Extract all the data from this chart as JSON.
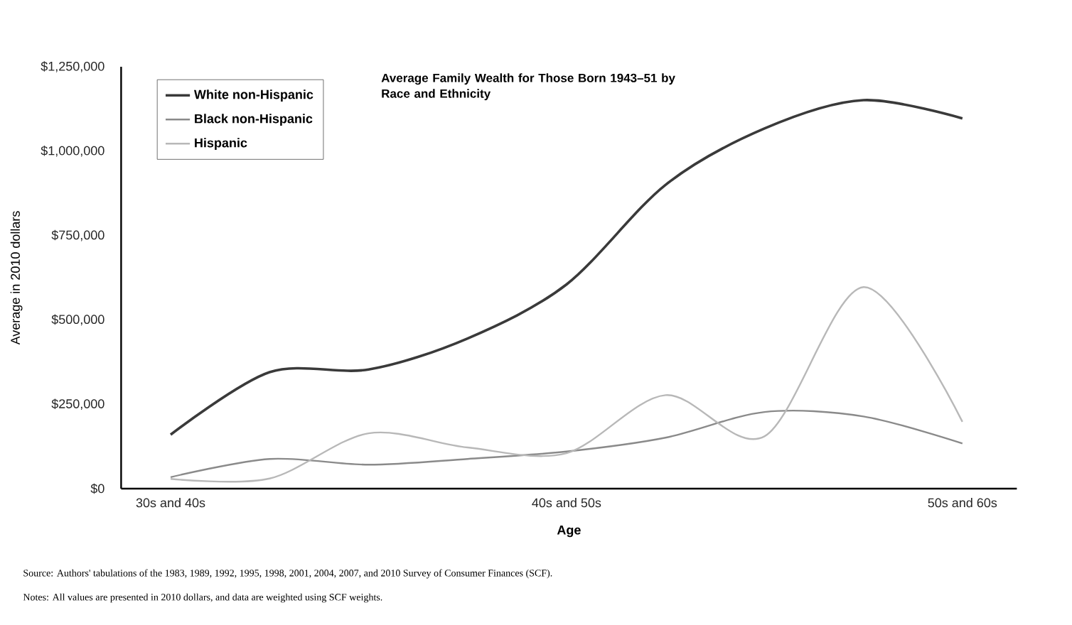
{
  "chart_data": {
    "type": "line",
    "title": "Average Family Wealth for Those Born 1943–51 by Race and Ethnicity",
    "xlabel": "Age",
    "ylabel": "Average in 2010 dollars",
    "categories": [
      "30s and 40s",
      null,
      null,
      null,
      "40s and 50s",
      null,
      null,
      null,
      "50s and 60s"
    ],
    "series": [
      {
        "name": "White non-Hispanic",
        "color": "#3a3a3a",
        "values": [
          160000,
          345000,
          353000,
          445000,
          605000,
          900000,
          1067000,
          1151000,
          1097000
        ]
      },
      {
        "name": "Black non-Hispanic",
        "color": "#8a8a8a",
        "values": [
          34000,
          88000,
          71000,
          88000,
          110000,
          151000,
          227000,
          214000,
          134000
        ]
      },
      {
        "name": "Hispanic",
        "color": "#b8b8b8",
        "values": [
          29000,
          30000,
          164000,
          122000,
          105000,
          277000,
          155000,
          597000,
          198000
        ]
      }
    ],
    "ylim": [
      0,
      1250000
    ],
    "yticks": [
      {
        "value": 0,
        "label": "$0"
      },
      {
        "value": 250000,
        "label": "$250,000"
      },
      {
        "value": 500000,
        "label": "$500,000"
      },
      {
        "value": 750000,
        "label": "$750,000"
      },
      {
        "value": 1000000,
        "label": "$1,000,000"
      },
      {
        "value": 1250000,
        "label": "$1,250,000"
      }
    ],
    "legend": "top left",
    "grid": false,
    "marker": "none",
    "line_style": "solid",
    "annotations": [
      "Source: Authors' tabulations of the 1983, 1989, 1992, 1995, 1998, 2001, 2004, 2007, and 2010 Survey of Consumer Finances (SCF).",
      "Notes: All values are presented in 2010 dollars, and data are weighted using SCF weights."
    ]
  }
}
